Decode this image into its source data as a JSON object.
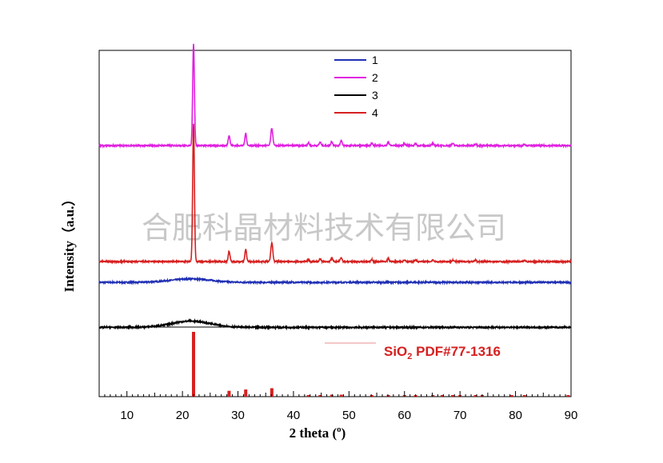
{
  "chart_data": {
    "type": "line",
    "xlabel": "2 theta (°)",
    "ylabel": "Intensity（a.u.）",
    "xlim": [
      5,
      90
    ],
    "xticks": [
      10,
      20,
      30,
      40,
      50,
      60,
      70,
      80,
      90
    ],
    "grid": false,
    "legend_position": "top-center",
    "watermark": "合肥科晶材料技术有限公司",
    "reference": {
      "label": "SiO₂ PDF#77-1316",
      "color": "#d62020",
      "peaks": [
        {
          "x": 22.0,
          "rel": 1.0
        },
        {
          "x": 28.4,
          "rel": 0.09
        },
        {
          "x": 31.4,
          "rel": 0.11
        },
        {
          "x": 36.1,
          "rel": 0.13
        },
        {
          "x": 42.7,
          "rel": 0.02
        },
        {
          "x": 44.8,
          "rel": 0.02
        },
        {
          "x": 46.9,
          "rel": 0.03
        },
        {
          "x": 48.6,
          "rel": 0.03
        },
        {
          "x": 54.1,
          "rel": 0.02
        },
        {
          "x": 57.1,
          "rel": 0.02
        },
        {
          "x": 60.0,
          "rel": 0.015
        },
        {
          "x": 62.0,
          "rel": 0.015
        },
        {
          "x": 65.1,
          "rel": 0.02
        },
        {
          "x": 66.8,
          "rel": 0.015
        },
        {
          "x": 68.7,
          "rel": 0.015
        },
        {
          "x": 70.0,
          "rel": 0.015
        },
        {
          "x": 72.8,
          "rel": 0.015
        },
        {
          "x": 74.0,
          "rel": 0.015
        },
        {
          "x": 79.3,
          "rel": 0.01
        },
        {
          "x": 81.6,
          "rel": 0.015
        },
        {
          "x": 89.5,
          "rel": 0.01
        }
      ]
    },
    "series": [
      {
        "name": "1",
        "color": "#1f2fb4",
        "offset": 0.33,
        "baseline": 0.0,
        "humps": [
          {
            "center": 21.5,
            "width": 5.0,
            "height": 0.01
          }
        ],
        "peaks": []
      },
      {
        "name": "2",
        "color": "#e020e0",
        "offset": 0.725,
        "baseline": 0.0,
        "humps": [],
        "peaks": [
          {
            "x": 22.0,
            "h": 0.295,
            "w": 0.22
          },
          {
            "x": 28.4,
            "h": 0.03,
            "w": 0.22
          },
          {
            "x": 31.4,
            "h": 0.035,
            "w": 0.22
          },
          {
            "x": 36.1,
            "h": 0.05,
            "w": 0.25
          },
          {
            "x": 42.7,
            "h": 0.008,
            "w": 0.22
          },
          {
            "x": 44.8,
            "h": 0.01,
            "w": 0.22
          },
          {
            "x": 46.9,
            "h": 0.012,
            "w": 0.22
          },
          {
            "x": 48.6,
            "h": 0.015,
            "w": 0.22
          },
          {
            "x": 54.1,
            "h": 0.007,
            "w": 0.22
          },
          {
            "x": 57.1,
            "h": 0.01,
            "w": 0.22
          },
          {
            "x": 60.0,
            "h": 0.006,
            "w": 0.22
          },
          {
            "x": 62.0,
            "h": 0.006,
            "w": 0.22
          },
          {
            "x": 65.1,
            "h": 0.006,
            "w": 0.22
          },
          {
            "x": 68.7,
            "h": 0.006,
            "w": 0.22
          },
          {
            "x": 72.8,
            "h": 0.005,
            "w": 0.22
          },
          {
            "x": 81.6,
            "h": 0.005,
            "w": 0.22
          }
        ]
      },
      {
        "name": "3",
        "color": "#000000",
        "offset": 0.2,
        "baseline": 0.0,
        "humps": [
          {
            "center": 21.5,
            "width": 5.0,
            "height": 0.018
          }
        ],
        "peaks": []
      },
      {
        "name": "4",
        "color": "#d62020",
        "offset": 0.39,
        "baseline": 0.0,
        "humps": [],
        "peaks": [
          {
            "x": 22.0,
            "h": 0.4,
            "w": 0.22
          },
          {
            "x": 28.4,
            "h": 0.03,
            "w": 0.22
          },
          {
            "x": 31.4,
            "h": 0.035,
            "w": 0.22
          },
          {
            "x": 36.1,
            "h": 0.055,
            "w": 0.25
          },
          {
            "x": 42.7,
            "h": 0.006,
            "w": 0.22
          },
          {
            "x": 44.8,
            "h": 0.008,
            "w": 0.22
          },
          {
            "x": 46.9,
            "h": 0.01,
            "w": 0.22
          },
          {
            "x": 48.6,
            "h": 0.012,
            "w": 0.22
          },
          {
            "x": 54.1,
            "h": 0.006,
            "w": 0.22
          },
          {
            "x": 57.1,
            "h": 0.008,
            "w": 0.22
          },
          {
            "x": 60.0,
            "h": 0.005,
            "w": 0.22
          },
          {
            "x": 62.0,
            "h": 0.005,
            "w": 0.22
          },
          {
            "x": 65.1,
            "h": 0.005,
            "w": 0.22
          },
          {
            "x": 68.7,
            "h": 0.005,
            "w": 0.22
          },
          {
            "x": 72.8,
            "h": 0.004,
            "w": 0.22
          },
          {
            "x": 81.6,
            "h": 0.004,
            "w": 0.22
          }
        ]
      }
    ]
  }
}
